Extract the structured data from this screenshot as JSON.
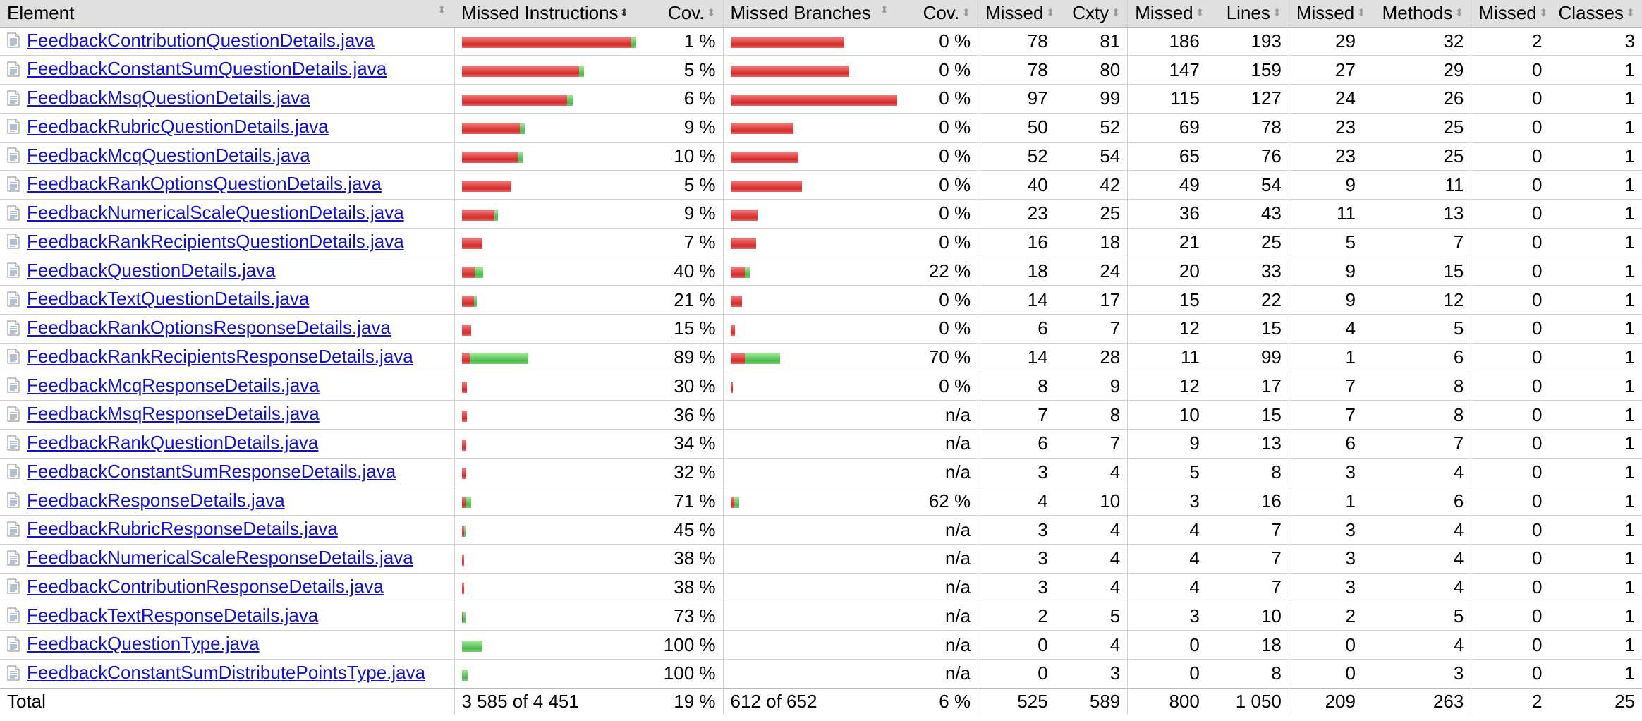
{
  "header": {
    "element": "Element",
    "missed_instructions": "Missed Instructions",
    "cov1": "Cov.",
    "missed_branches": "Missed Branches",
    "cov2": "Cov.",
    "missed_cxty": "Missed",
    "cxty": "Cxty",
    "missed_lines": "Missed",
    "lines": "Lines",
    "missed_methods": "Missed",
    "methods": "Methods",
    "missed_classes": "Missed",
    "classes": "Classes"
  },
  "colors": {
    "missed": "#d42a2a",
    "covered": "#4dbb4d",
    "link": "#1313c9",
    "header_bg": "#e0e0e0"
  },
  "rows": [
    {
      "name": "FeedbackContributionQuestionDetails.java",
      "instr_missed_frac": 1.0,
      "instr_cov_frac": 0.03,
      "instr_cov": "1 %",
      "br_missed_frac": 0.67,
      "br_cov_frac": 0.0,
      "br_cov": "0 %",
      "cx_missed": "78",
      "cx": "81",
      "ln_missed": "186",
      "ln": "193",
      "m_missed": "29",
      "m": "32",
      "c_missed": "2",
      "c": "3"
    },
    {
      "name": "FeedbackConstantSumQuestionDetails.java",
      "instr_missed_frac": 0.69,
      "instr_cov_frac": 0.03,
      "instr_cov": "5 %",
      "br_missed_frac": 0.7,
      "br_cov_frac": 0.0,
      "br_cov": "0 %",
      "cx_missed": "78",
      "cx": "80",
      "ln_missed": "147",
      "ln": "159",
      "m_missed": "27",
      "m": "29",
      "c_missed": "0",
      "c": "1"
    },
    {
      "name": "FeedbackMsqQuestionDetails.java",
      "instr_missed_frac": 0.62,
      "instr_cov_frac": 0.035,
      "instr_cov": "6 %",
      "br_missed_frac": 1.0,
      "br_cov_frac": 0.0,
      "br_cov": "0 %",
      "cx_missed": "97",
      "cx": "99",
      "ln_missed": "115",
      "ln": "127",
      "m_missed": "24",
      "m": "26",
      "c_missed": "0",
      "c": "1"
    },
    {
      "name": "FeedbackRubricQuestionDetails.java",
      "instr_missed_frac": 0.34,
      "instr_cov_frac": 0.03,
      "instr_cov": "9 %",
      "br_missed_frac": 0.37,
      "br_cov_frac": 0.0,
      "br_cov": "0 %",
      "cx_missed": "50",
      "cx": "52",
      "ln_missed": "69",
      "ln": "78",
      "m_missed": "23",
      "m": "25",
      "c_missed": "0",
      "c": "1"
    },
    {
      "name": "FeedbackMcqQuestionDetails.java",
      "instr_missed_frac": 0.33,
      "instr_cov_frac": 0.03,
      "instr_cov": "10 %",
      "br_missed_frac": 0.4,
      "br_cov_frac": 0.0,
      "br_cov": "0 %",
      "cx_missed": "52",
      "cx": "54",
      "ln_missed": "65",
      "ln": "76",
      "m_missed": "23",
      "m": "25",
      "c_missed": "0",
      "c": "1"
    },
    {
      "name": "FeedbackRankOptionsQuestionDetails.java",
      "instr_missed_frac": 0.29,
      "instr_cov_frac": 0.0,
      "instr_cov": "5 %",
      "br_missed_frac": 0.42,
      "br_cov_frac": 0.0,
      "br_cov": "0 %",
      "cx_missed": "40",
      "cx": "42",
      "ln_missed": "49",
      "ln": "54",
      "m_missed": "9",
      "m": "11",
      "c_missed": "0",
      "c": "1"
    },
    {
      "name": "FeedbackNumericalScaleQuestionDetails.java",
      "instr_missed_frac": 0.19,
      "instr_cov_frac": 0.02,
      "instr_cov": "9 %",
      "br_missed_frac": 0.16,
      "br_cov_frac": 0.0,
      "br_cov": "0 %",
      "cx_missed": "23",
      "cx": "25",
      "ln_missed": "36",
      "ln": "43",
      "m_missed": "11",
      "m": "13",
      "c_missed": "0",
      "c": "1"
    },
    {
      "name": "FeedbackRankRecipientsQuestionDetails.java",
      "instr_missed_frac": 0.12,
      "instr_cov_frac": 0.0,
      "instr_cov": "7 %",
      "br_missed_frac": 0.15,
      "br_cov_frac": 0.0,
      "br_cov": "0 %",
      "cx_missed": "16",
      "cx": "18",
      "ln_missed": "21",
      "ln": "25",
      "m_missed": "5",
      "m": "7",
      "c_missed": "0",
      "c": "1"
    },
    {
      "name": "FeedbackQuestionDetails.java",
      "instr_missed_frac": 0.075,
      "instr_cov_frac": 0.05,
      "instr_cov": "40 %",
      "br_missed_frac": 0.085,
      "br_cov_frac": 0.03,
      "br_cov": "22 %",
      "cx_missed": "18",
      "cx": "24",
      "ln_missed": "20",
      "ln": "33",
      "m_missed": "9",
      "m": "15",
      "c_missed": "0",
      "c": "1"
    },
    {
      "name": "FeedbackTextQuestionDetails.java",
      "instr_missed_frac": 0.07,
      "instr_cov_frac": 0.015,
      "instr_cov": "21 %",
      "br_missed_frac": 0.065,
      "br_cov_frac": 0.0,
      "br_cov": "0 %",
      "cx_missed": "14",
      "cx": "17",
      "ln_missed": "15",
      "ln": "22",
      "m_missed": "9",
      "m": "12",
      "c_missed": "0",
      "c": "1"
    },
    {
      "name": "FeedbackRankOptionsResponseDetails.java",
      "instr_missed_frac": 0.055,
      "instr_cov_frac": 0.0,
      "instr_cov": "15 %",
      "br_missed_frac": 0.025,
      "br_cov_frac": 0.0,
      "br_cov": "0 %",
      "cx_missed": "6",
      "cx": "7",
      "ln_missed": "12",
      "ln": "15",
      "m_missed": "4",
      "m": "5",
      "c_missed": "0",
      "c": "1"
    },
    {
      "name": "FeedbackRankRecipientsResponseDetails.java",
      "instr_missed_frac": 0.045,
      "instr_cov_frac": 0.345,
      "instr_cov": "89 %",
      "br_missed_frac": 0.085,
      "br_cov_frac": 0.21,
      "br_cov": "70 %",
      "cx_missed": "14",
      "cx": "28",
      "ln_missed": "11",
      "ln": "99",
      "m_missed": "1",
      "m": "6",
      "c_missed": "0",
      "c": "1"
    },
    {
      "name": "FeedbackMcqResponseDetails.java",
      "instr_missed_frac": 0.03,
      "instr_cov_frac": 0.0,
      "instr_cov": "30 %",
      "br_missed_frac": 0.012,
      "br_cov_frac": 0.0,
      "br_cov": "0 %",
      "cx_missed": "8",
      "cx": "9",
      "ln_missed": "12",
      "ln": "17",
      "m_missed": "7",
      "m": "8",
      "c_missed": "0",
      "c": "1"
    },
    {
      "name": "FeedbackMsqResponseDetails.java",
      "instr_missed_frac": 0.03,
      "instr_cov_frac": 0.0,
      "instr_cov": "36 %",
      "br_missed_frac": 0,
      "br_cov_frac": 0,
      "br_cov": "n/a",
      "cx_missed": "7",
      "cx": "8",
      "ln_missed": "10",
      "ln": "15",
      "m_missed": "7",
      "m": "8",
      "c_missed": "0",
      "c": "1"
    },
    {
      "name": "FeedbackRankQuestionDetails.java",
      "instr_missed_frac": 0.025,
      "instr_cov_frac": 0.0,
      "instr_cov": "34 %",
      "br_missed_frac": 0,
      "br_cov_frac": 0,
      "br_cov": "n/a",
      "cx_missed": "6",
      "cx": "7",
      "ln_missed": "9",
      "ln": "13",
      "m_missed": "6",
      "m": "7",
      "c_missed": "0",
      "c": "1"
    },
    {
      "name": "FeedbackConstantSumResponseDetails.java",
      "instr_missed_frac": 0.025,
      "instr_cov_frac": 0.0,
      "instr_cov": "32 %",
      "br_missed_frac": 0,
      "br_cov_frac": 0,
      "br_cov": "n/a",
      "cx_missed": "3",
      "cx": "4",
      "ln_missed": "5",
      "ln": "8",
      "m_missed": "3",
      "m": "4",
      "c_missed": "0",
      "c": "1"
    },
    {
      "name": "FeedbackResponseDetails.java",
      "instr_missed_frac": 0.02,
      "instr_cov_frac": 0.035,
      "instr_cov": "71 %",
      "br_missed_frac": 0.02,
      "br_cov_frac": 0.03,
      "br_cov": "62 %",
      "cx_missed": "4",
      "cx": "10",
      "ln_missed": "3",
      "ln": "16",
      "m_missed": "1",
      "m": "6",
      "c_missed": "0",
      "c": "1"
    },
    {
      "name": "FeedbackRubricResponseDetails.java",
      "instr_missed_frac": 0.012,
      "instr_cov_frac": 0.008,
      "instr_cov": "45 %",
      "br_missed_frac": 0,
      "br_cov_frac": 0,
      "br_cov": "n/a",
      "cx_missed": "3",
      "cx": "4",
      "ln_missed": "4",
      "ln": "7",
      "m_missed": "3",
      "m": "4",
      "c_missed": "0",
      "c": "1"
    },
    {
      "name": "FeedbackNumericalScaleResponseDetails.java",
      "instr_missed_frac": 0.012,
      "instr_cov_frac": 0.0,
      "instr_cov": "38 %",
      "br_missed_frac": 0,
      "br_cov_frac": 0,
      "br_cov": "n/a",
      "cx_missed": "3",
      "cx": "4",
      "ln_missed": "4",
      "ln": "7",
      "m_missed": "3",
      "m": "4",
      "c_missed": "0",
      "c": "1"
    },
    {
      "name": "FeedbackContributionResponseDetails.java",
      "instr_missed_frac": 0.012,
      "instr_cov_frac": 0.0,
      "instr_cov": "38 %",
      "br_missed_frac": 0,
      "br_cov_frac": 0,
      "br_cov": "n/a",
      "cx_missed": "3",
      "cx": "4",
      "ln_missed": "4",
      "ln": "7",
      "m_missed": "3",
      "m": "4",
      "c_missed": "0",
      "c": "1"
    },
    {
      "name": "FeedbackTextResponseDetails.java",
      "instr_missed_frac": 0.005,
      "instr_cov_frac": 0.015,
      "instr_cov": "73 %",
      "br_missed_frac": 0,
      "br_cov_frac": 0,
      "br_cov": "n/a",
      "cx_missed": "2",
      "cx": "5",
      "ln_missed": "3",
      "ln": "10",
      "m_missed": "2",
      "m": "5",
      "c_missed": "0",
      "c": "1"
    },
    {
      "name": "FeedbackQuestionType.java",
      "instr_missed_frac": 0.0,
      "instr_cov_frac": 0.12,
      "instr_cov": "100 %",
      "br_missed_frac": 0,
      "br_cov_frac": 0,
      "br_cov": "n/a",
      "cx_missed": "0",
      "cx": "4",
      "ln_missed": "0",
      "ln": "18",
      "m_missed": "0",
      "m": "4",
      "c_missed": "0",
      "c": "1"
    },
    {
      "name": "FeedbackConstantSumDistributePointsType.java",
      "instr_missed_frac": 0.0,
      "instr_cov_frac": 0.035,
      "instr_cov": "100 %",
      "br_missed_frac": 0,
      "br_cov_frac": 0,
      "br_cov": "n/a",
      "cx_missed": "0",
      "cx": "3",
      "ln_missed": "0",
      "ln": "8",
      "m_missed": "0",
      "m": "3",
      "c_missed": "0",
      "c": "1"
    }
  ],
  "total": {
    "label": "Total",
    "instr": "3 585 of 4 451",
    "instr_cov": "19 %",
    "br": "612 of 652",
    "br_cov": "6 %",
    "cx_missed": "525",
    "cx": "589",
    "ln_missed": "800",
    "ln": "1 050",
    "m_missed": "209",
    "m": "263",
    "c_missed": "2",
    "c": "25"
  }
}
